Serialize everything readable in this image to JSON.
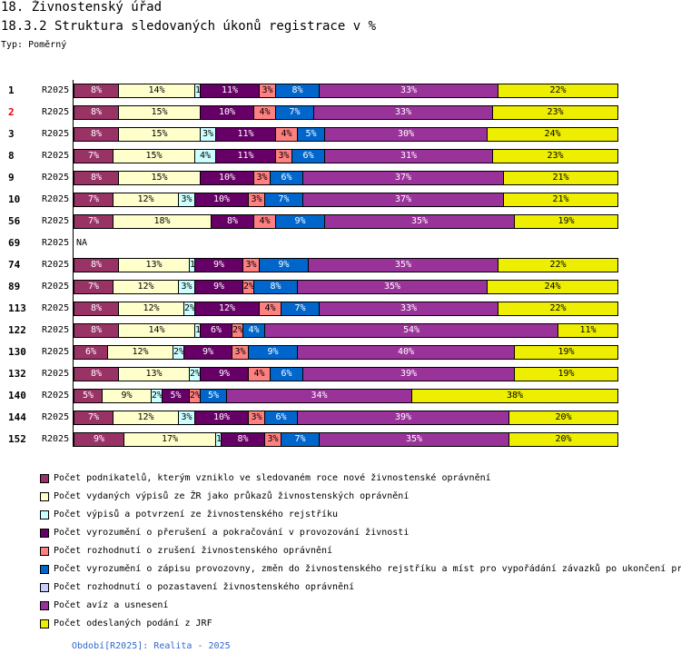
{
  "header": {
    "title": "18. Živnostenský úřad",
    "subtitle": "18.3.2 Struktura sledovaných úkonů registrace v %",
    "type_label": "Typ: Poměrný"
  },
  "chart_data": {
    "type": "bar",
    "orientation": "horizontal",
    "stacked": "percent",
    "xlim": [
      0,
      100
    ],
    "series_names": [
      "Počet podnikatelů, kterým vzniklo ve sledovaném roce nové živnostenské oprávnění",
      "Počet vydaných výpisů ze ŽR jako průkazů živnostenských oprávnění",
      "Počet výpisů a potvrzení ze živnostenského rejstříku",
      "Počet vyrozumění o přerušení a pokračování v provozování živnosti",
      "Počet rozhodnutí o zrušení živnostenského oprávnění",
      "Počet vyrozumění o zápisu provozovny, změn do živnostenského rejstříku a míst pro vypořádání závazků po ukončení pr",
      "Počet rozhodnutí o pozastavení živnostenského oprávnění",
      "Počet avíz a usnesení",
      "Počet odeslaných podání z JRF"
    ],
    "series_colors": [
      "#993366",
      "#ffffcc",
      "#ccffff",
      "#660066",
      "#ff8080",
      "#0066cc",
      "#ccccff",
      "#993399",
      "#eeee00"
    ],
    "rows": [
      {
        "id": "1",
        "period": "R2025",
        "highlight": false,
        "values": [
          8,
          14,
          1,
          11,
          3,
          8,
          0,
          33,
          22
        ],
        "labels": [
          "8%",
          "14%",
          "1%",
          "11%",
          "3%",
          "8%",
          "",
          "33%",
          "22%"
        ]
      },
      {
        "id": "2",
        "period": "R2025",
        "highlight": true,
        "values": [
          8,
          15,
          0,
          10,
          4,
          7,
          0,
          33,
          23
        ],
        "labels": [
          "8%",
          "15%",
          "",
          "10%",
          "4%",
          "7%",
          "",
          "33%",
          "23%"
        ]
      },
      {
        "id": "3",
        "period": "R2025",
        "highlight": false,
        "values": [
          8,
          15,
          3,
          11,
          4,
          5,
          0,
          30,
          24
        ],
        "labels": [
          "8%",
          "15%",
          "3%",
          "11%",
          "4%",
          "5%",
          "",
          "30%",
          "24%"
        ]
      },
      {
        "id": "8",
        "period": "R2025",
        "highlight": false,
        "values": [
          7,
          15,
          4,
          11,
          3,
          6,
          0,
          31,
          23
        ],
        "labels": [
          "7%",
          "15%",
          "4%",
          "11%",
          "3%",
          "6%",
          "",
          "31%",
          "23%"
        ]
      },
      {
        "id": "9",
        "period": "R2025",
        "highlight": false,
        "values": [
          8,
          15,
          0,
          10,
          3,
          6,
          0,
          37,
          21
        ],
        "labels": [
          "8%",
          "15%",
          "",
          "10%",
          "3%",
          "6%",
          "",
          "37%",
          "21%"
        ]
      },
      {
        "id": "10",
        "period": "R2025",
        "highlight": false,
        "values": [
          7,
          12,
          3,
          10,
          3,
          7,
          0,
          37,
          21
        ],
        "labels": [
          "7%",
          "12%",
          "3%",
          "10%",
          "3%",
          "7%",
          "",
          "37%",
          "21%"
        ]
      },
      {
        "id": "56",
        "period": "R2025",
        "highlight": false,
        "values": [
          7,
          18,
          0,
          8,
          4,
          9,
          0,
          35,
          19
        ],
        "labels": [
          "7%",
          "18%",
          "",
          "8%",
          "4%",
          "9%",
          "",
          "35%",
          "19%"
        ]
      },
      {
        "id": "69",
        "period": "R2025",
        "highlight": false,
        "na": true,
        "na_label": "NA",
        "values": [],
        "labels": []
      },
      {
        "id": "74",
        "period": "R2025",
        "highlight": false,
        "values": [
          8,
          13,
          1,
          9,
          3,
          9,
          0,
          35,
          22
        ],
        "labels": [
          "8%",
          "13%",
          "1%",
          "9%",
          "3%",
          "9%",
          "",
          "35%",
          "22%"
        ]
      },
      {
        "id": "89",
        "period": "R2025",
        "highlight": false,
        "values": [
          7,
          12,
          3,
          9,
          2,
          8,
          0,
          35,
          24
        ],
        "labels": [
          "7%",
          "12%",
          "3%",
          "9%",
          "2%",
          "8%",
          "",
          "35%",
          "24%"
        ]
      },
      {
        "id": "113",
        "period": "R2025",
        "highlight": false,
        "values": [
          8,
          12,
          2,
          12,
          4,
          7,
          0,
          33,
          22
        ],
        "labels": [
          "8%",
          "12%",
          "2%",
          "12%",
          "4%",
          "7%",
          "",
          "33%",
          "22%"
        ]
      },
      {
        "id": "122",
        "period": "R2025",
        "highlight": false,
        "values": [
          8,
          14,
          1,
          6,
          2,
          4,
          0,
          54,
          11
        ],
        "labels": [
          "8%",
          "14%",
          "1%",
          "6%",
          "2%",
          "4%",
          "",
          "54%",
          "11%"
        ]
      },
      {
        "id": "130",
        "period": "R2025",
        "highlight": false,
        "values": [
          6,
          12,
          2,
          9,
          3,
          9,
          0,
          40,
          19
        ],
        "labels": [
          "6%",
          "12%",
          "2%",
          "9%",
          "3%",
          "9%",
          "",
          "40%",
          "19%"
        ]
      },
      {
        "id": "132",
        "period": "R2025",
        "highlight": false,
        "values": [
          8,
          13,
          2,
          9,
          4,
          6,
          0,
          39,
          19
        ],
        "labels": [
          "8%",
          "13%",
          "2%",
          "9%",
          "4%",
          "6%",
          "",
          "39%",
          "19%"
        ]
      },
      {
        "id": "140",
        "period": "R2025",
        "highlight": false,
        "values": [
          5,
          9,
          2,
          5,
          2,
          5,
          0,
          34,
          38
        ],
        "labels": [
          "5%",
          "9%",
          "2%",
          "5%",
          "2%",
          "5%",
          "",
          "34%",
          "38%"
        ]
      },
      {
        "id": "144",
        "period": "R2025",
        "highlight": false,
        "values": [
          7,
          12,
          3,
          10,
          3,
          6,
          0,
          39,
          20
        ],
        "labels": [
          "7%",
          "12%",
          "3%",
          "10%",
          "3%",
          "6%",
          "",
          "39%",
          "20%"
        ]
      },
      {
        "id": "152",
        "period": "R2025",
        "highlight": false,
        "values": [
          9,
          17,
          1,
          8,
          3,
          7,
          0,
          35,
          20
        ],
        "labels": [
          "9%",
          "17%",
          "1%",
          "8%",
          "3%",
          "7%",
          "",
          "35%",
          "20%"
        ]
      }
    ]
  },
  "footer": "Období[R2025]: Realita - 2025"
}
